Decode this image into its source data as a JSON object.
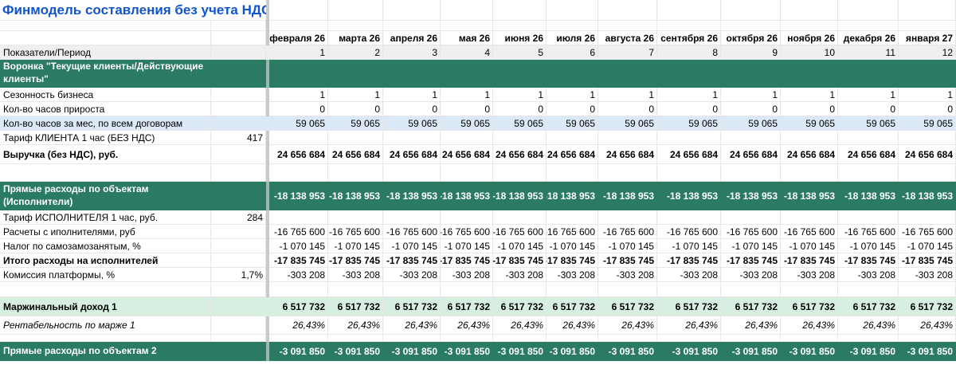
{
  "app": {
    "title": "Финмодель составления без учета НДС"
  },
  "colors": {
    "section_green": "#2b7a64",
    "highlight_green": "#d7efe1",
    "highlight_blue": "#dbe8f6",
    "header_grey": "#efefef",
    "title_blue": "#1155cc"
  },
  "table": {
    "period_label": "Показатели/Период",
    "months": [
      "февраля  26",
      "марта  26",
      "апреля  26",
      "мая  26",
      "июня  26",
      "июля  26",
      "августа  26",
      "сентября  26",
      "октября  26",
      "ноября  26",
      "декабря  26",
      "января  27"
    ],
    "period_numbers": [
      "1",
      "2",
      "3",
      "4",
      "5",
      "6",
      "7",
      "8",
      "9",
      "10",
      "11",
      "12"
    ],
    "rows": [
      {
        "kind": "section",
        "label": "Воронка \"Текущие клиенты/Действующие клиенты\"",
        "param": "",
        "value": ""
      },
      {
        "kind": "normal",
        "label": "Сезонность бизнеса",
        "param": "",
        "value": "1"
      },
      {
        "kind": "normal",
        "label": "Кол-во часов прироста",
        "param": "",
        "value": "0"
      },
      {
        "kind": "hblue",
        "label": "Кол-во часов за мес, по всем договорам",
        "param": "",
        "value": "59 065"
      },
      {
        "kind": "normal",
        "label": "Тариф КЛИЕНТА 1 час (БЕЗ НДС)",
        "param": "417",
        "value": ""
      },
      {
        "kind": "total",
        "label": "Выручка (без НДС), руб.",
        "param": "",
        "value": "24 656 684"
      },
      {
        "kind": "spacer",
        "label": "",
        "param": "",
        "value": ""
      },
      {
        "kind": "section",
        "label": "Прямые расходы по объектам (Исполнители)",
        "param": "",
        "value": "-18 138 953"
      },
      {
        "kind": "normal",
        "label": "Тариф ИСПОЛНИТЕЛЯ 1 час, руб.",
        "param": "284",
        "value": ""
      },
      {
        "kind": "normal",
        "label": "Расчеты с иполнителями, руб",
        "param": "",
        "value": "-16 765 600"
      },
      {
        "kind": "normal",
        "label": "Налог по самозамозанятым, %",
        "param": "",
        "value": "-1 070 145"
      },
      {
        "kind": "total",
        "label": "Итого расходы на исполнителей",
        "param": "",
        "value": "-17 835 745"
      },
      {
        "kind": "normal",
        "label": "Комиссия платформы, %",
        "param": "1,7%",
        "value": "-303 208"
      },
      {
        "kind": "spacer",
        "label": "",
        "param": "",
        "value": ""
      },
      {
        "kind": "hgreen",
        "label": "Маржинальный доход 1",
        "param": "",
        "value": "6 517 732"
      },
      {
        "kind": "italic",
        "label": "Рентабельность по марже 1",
        "param": "",
        "value": "26,43%"
      },
      {
        "kind": "spacer",
        "label": "",
        "param": "",
        "value": ""
      },
      {
        "kind": "section",
        "label": "Прямые расходы по объектам 2",
        "param": "",
        "value": "-3 091 850"
      }
    ]
  }
}
